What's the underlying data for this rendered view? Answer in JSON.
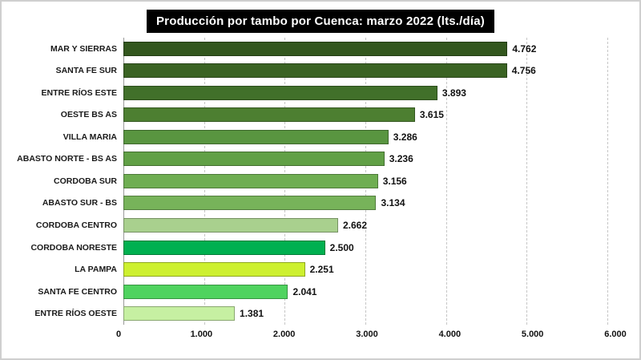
{
  "title": "Producción por tambo por Cuenca: marzo 2022 (lts./día)",
  "chart_data": {
    "type": "bar",
    "orientation": "horizontal",
    "title": "Producción por tambo por Cuenca: marzo 2022 (lts./día)",
    "categories": [
      "MAR Y SIERRAS",
      "SANTA FE SUR",
      "ENTRE RÍOS ESTE",
      "OESTE BS AS",
      "VILLA MARIA",
      "ABASTO NORTE - BS AS",
      "CORDOBA SUR",
      "ABASTO SUR - BS",
      "CORDOBA CENTRO",
      "CORDOBA NORESTE",
      "LA PAMPA",
      "SANTA FE CENTRO",
      "ENTRE RÍOS OESTE"
    ],
    "values": [
      4762,
      4756,
      3893,
      3615,
      3286,
      3236,
      3156,
      3134,
      2662,
      2500,
      2251,
      2041,
      1381
    ],
    "value_labels": [
      "4.762",
      "4.756",
      "3.893",
      "3.615",
      "3.286",
      "3.236",
      "3.156",
      "3.134",
      "2.662",
      "2.500",
      "2.251",
      "2.041",
      "1.381"
    ],
    "bar_colors": [
      "#33571e",
      "#3a6323",
      "#41702a",
      "#4d7f31",
      "#599540",
      "#61a046",
      "#6fae52",
      "#77b35a",
      "#a9d08e",
      "#00b050",
      "#cdf02f",
      "#4fd35f",
      "#c6f0a2"
    ],
    "xlim": [
      0,
      6000
    ],
    "x_ticks": [
      0,
      1000,
      2000,
      3000,
      4000,
      5000,
      6000
    ],
    "x_tick_labels": [
      "0",
      "1.000",
      "2.000",
      "3.000",
      "4.000",
      "5.000",
      "6.000"
    ],
    "grid": "dashed-vertical",
    "legend": "none"
  }
}
